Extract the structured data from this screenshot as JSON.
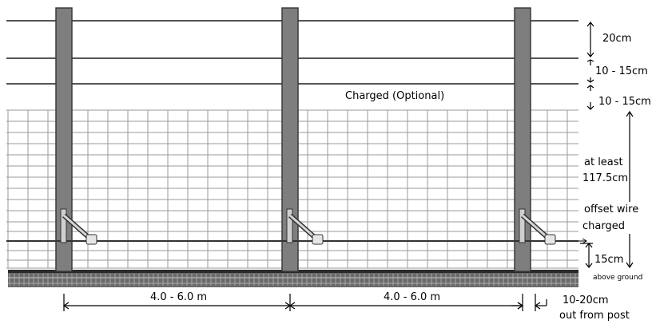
{
  "labels": {
    "charged_optional": "Charged (Optional)",
    "gap_top": "20cm",
    "gap_second": "10 - 15cm",
    "gap_third": "10 - 15cm",
    "height_line1": "at least",
    "height_line2": "117.5cm",
    "offset_line1": "offset wire",
    "offset_line2": "charged",
    "offset_height": "15cm",
    "above_ground": "above ground",
    "post_spacing_left": "4.0 - 6.0 m",
    "post_spacing_right": "4.0 - 6.0 m",
    "offset_distance_line1": "10-20cm",
    "offset_distance_line2": "out from post"
  },
  "colors": {
    "post": "#7e7e7e",
    "mesh": "#9a9a9a",
    "wire": "#555555",
    "ground": "#444444"
  }
}
